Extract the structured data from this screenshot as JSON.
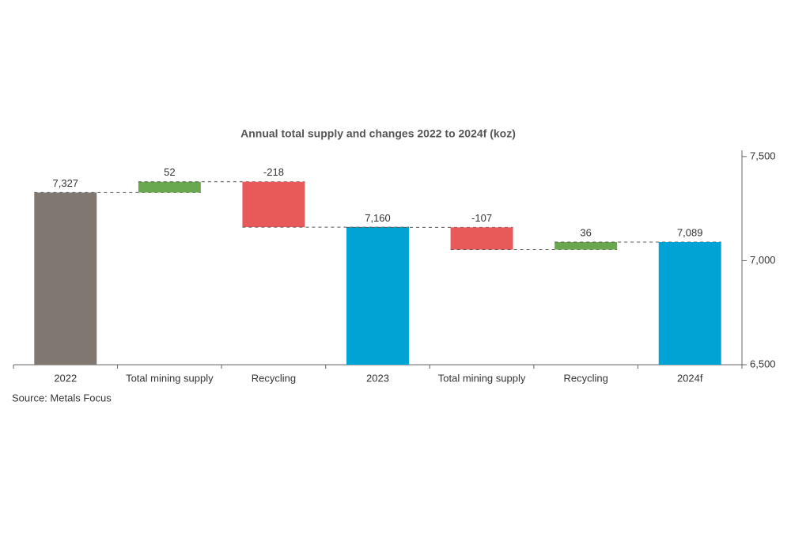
{
  "chart_data": {
    "type": "waterfall",
    "title": "Annual total supply and changes 2022 to 2024f (koz)",
    "categories": [
      "2022",
      "Total mining supply",
      "Recycling",
      "2023",
      "Total mining supply",
      "Recycling",
      "2024f"
    ],
    "values": [
      7327,
      52,
      -218,
      7160,
      -107,
      36,
      7089
    ],
    "value_labels": [
      "7,327",
      "52",
      "-218",
      "7,160",
      "-107",
      "36",
      "7,089"
    ],
    "measure": [
      "total",
      "relative",
      "relative",
      "total",
      "relative",
      "relative",
      "total"
    ],
    "colors": [
      "#7f7770",
      "#6aa84f",
      "#e85a5a",
      "#00a3d4",
      "#e85a5a",
      "#6aa84f",
      "#00a3d4"
    ],
    "ylim": [
      6500,
      7530
    ],
    "yticks": [
      {
        "value": 6500,
        "label": "6,500"
      },
      {
        "value": 7000,
        "label": "7,000"
      },
      {
        "value": 7500,
        "label": "7,500"
      }
    ],
    "axis_side": "right",
    "source": "Source: Metals Focus"
  }
}
